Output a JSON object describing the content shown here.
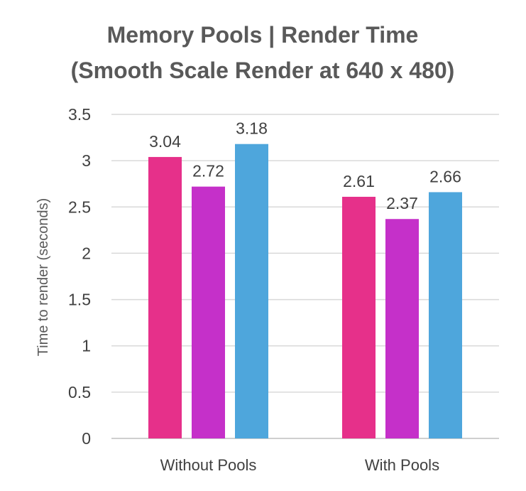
{
  "chart_data": {
    "type": "bar",
    "title_lines": [
      "Memory Pools | Render Time",
      "(Smooth Scale Render at 640 x 480)"
    ],
    "xlabel": "",
    "ylabel": "Time to render (seconds)",
    "ylim": [
      0,
      3.5
    ],
    "yticks": [
      0,
      0.5,
      1,
      1.5,
      2,
      2.5,
      3,
      3.5
    ],
    "ytick_labels": [
      "0",
      "0.5",
      "1",
      "1.5",
      "2",
      "2.5",
      "3",
      "3.5"
    ],
    "categories": [
      "Without Pools",
      "With Pools"
    ],
    "series": [
      {
        "values": [
          3.04,
          2.61
        ],
        "labels": [
          "3.04",
          "2.61"
        ],
        "color": "#e6308a"
      },
      {
        "values": [
          2.72,
          2.37
        ],
        "labels": [
          "2.72",
          "2.37"
        ],
        "color": "#c530c9"
      },
      {
        "values": [
          3.18,
          2.66
        ],
        "labels": [
          "3.18",
          "2.66"
        ],
        "color": "#4ea6dc"
      }
    ],
    "legend": "none",
    "grid": true
  }
}
